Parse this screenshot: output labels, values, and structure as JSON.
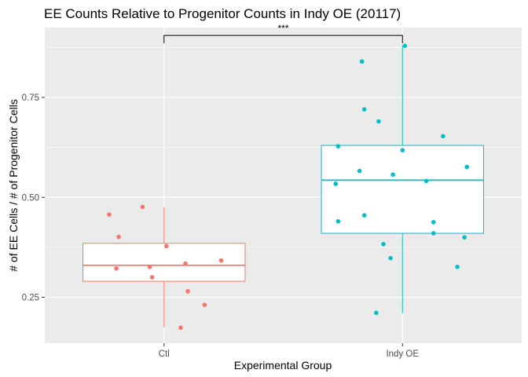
{
  "chart_data": {
    "type": "boxplot",
    "title": "EE Counts Relative to Progenitor Counts in Indy OE (20117)",
    "xlabel": "Experimental Group",
    "ylabel": "# of EE Cells / # of Progenitor Cells",
    "categories": [
      "Ctl",
      "Indy OE"
    ],
    "ylim": [
      0.135,
      0.925
    ],
    "yticks": [
      0.25,
      0.5,
      0.75
    ],
    "ytick_labels": [
      "0.25",
      "0.50",
      "0.75"
    ],
    "grid": true,
    "legend": "none",
    "significance": {
      "from": "Ctl",
      "to": "Indy OE",
      "y": 0.905,
      "label": "***"
    },
    "series": [
      {
        "category": "Ctl",
        "color": "#F8766D",
        "box": {
          "whisker_low": 0.175,
          "q1": 0.29,
          "median": 0.33,
          "q3": 0.385,
          "whisker_high": 0.475
        },
        "points": [
          {
            "x": -0.23,
            "y": 0.457
          },
          {
            "x": -0.09,
            "y": 0.476
          },
          {
            "x": -0.19,
            "y": 0.401
          },
          {
            "x": 0.01,
            "y": 0.378
          },
          {
            "x": 0.24,
            "y": 0.342
          },
          {
            "x": 0.09,
            "y": 0.334
          },
          {
            "x": -0.2,
            "y": 0.322
          },
          {
            "x": -0.06,
            "y": 0.326
          },
          {
            "x": -0.05,
            "y": 0.3
          },
          {
            "x": 0.1,
            "y": 0.265
          },
          {
            "x": 0.17,
            "y": 0.231
          },
          {
            "x": 0.07,
            "y": 0.174
          }
        ]
      },
      {
        "category": "Indy OE",
        "color": "#00BFC4",
        "box": {
          "whisker_low": 0.21,
          "q1": 0.41,
          "median": 0.543,
          "q3": 0.63,
          "whisker_high": 0.88
        },
        "points": [
          {
            "x": 0.01,
            "y": 0.879
          },
          {
            "x": -0.17,
            "y": 0.84
          },
          {
            "x": -0.16,
            "y": 0.72
          },
          {
            "x": -0.1,
            "y": 0.69
          },
          {
            "x": 0.17,
            "y": 0.653
          },
          {
            "x": -0.27,
            "y": 0.628
          },
          {
            "x": 0.0,
            "y": 0.618
          },
          {
            "x": 0.27,
            "y": 0.576
          },
          {
            "x": -0.18,
            "y": 0.566
          },
          {
            "x": -0.04,
            "y": 0.557
          },
          {
            "x": 0.1,
            "y": 0.541
          },
          {
            "x": -0.28,
            "y": 0.534
          },
          {
            "x": -0.16,
            "y": 0.455
          },
          {
            "x": -0.27,
            "y": 0.44
          },
          {
            "x": 0.13,
            "y": 0.438
          },
          {
            "x": 0.13,
            "y": 0.41
          },
          {
            "x": 0.26,
            "y": 0.4
          },
          {
            "x": -0.08,
            "y": 0.383
          },
          {
            "x": -0.05,
            "y": 0.348
          },
          {
            "x": 0.23,
            "y": 0.326
          },
          {
            "x": -0.11,
            "y": 0.211
          }
        ]
      }
    ]
  }
}
